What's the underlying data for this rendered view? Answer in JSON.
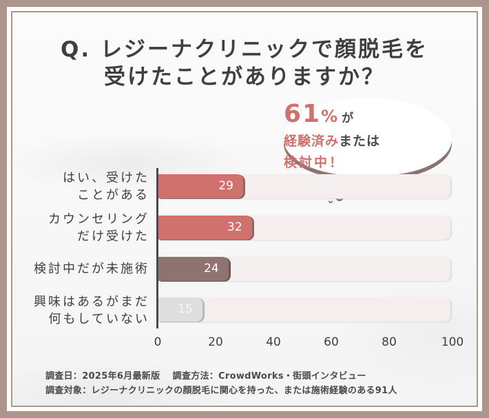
{
  "title": {
    "line1": "Q. レジーナクリニックで顔脱毛を",
    "line2": "受けたことがありますか？"
  },
  "callout": {
    "percent_number": "61",
    "percent_sign": "%",
    "line1_suffix": "が",
    "line2_highlight": "経験済み",
    "line2_rest": "または",
    "line3": "検討中！"
  },
  "colors": {
    "frame": "#ad958c",
    "accent_red": "#d0716d",
    "accent_mauve": "#8e7371",
    "neutral_gray": "#dedede",
    "track": "#f4eeee",
    "text": "#3f3f3f"
  },
  "notes": {
    "line1": "調査日：2025年6月最新版　 調査方法：CrowdWorks・街頭インタビュー",
    "line2": "調査対象：レジーナクリニックの顔脱毛に関心を持った、または施術経験のある91人"
  },
  "chart_data": {
    "type": "bar",
    "orientation": "horizontal",
    "title": "Q. レジーナクリニックで顔脱毛を受けたことがありますか？",
    "xlabel": "",
    "ylabel": "",
    "xlim": [
      0,
      100
    ],
    "x_ticks": [
      "0",
      "20",
      "40",
      "60",
      "80",
      "100"
    ],
    "grid": false,
    "legend": null,
    "categories": [
      {
        "line1": "はい、受けた",
        "line2": "ことがある"
      },
      {
        "line1": "カウンセリング",
        "line2": "だけ受けた"
      },
      {
        "line1": "検討中だが未施術",
        "line2": ""
      },
      {
        "line1": "興味はあるがまだ",
        "line2": "何もしていない"
      }
    ],
    "category_labels": [
      "はい、受けたことがある",
      "カウンセリングだけ受けた",
      "検討中だが未施術",
      "興味はあるがまだ何もしていない"
    ],
    "values": [
      29,
      32,
      24,
      15
    ],
    "value_labels": [
      "29",
      "32",
      "24",
      "15"
    ],
    "annotations": [
      "61%が経験済みまたは検討中！"
    ]
  }
}
